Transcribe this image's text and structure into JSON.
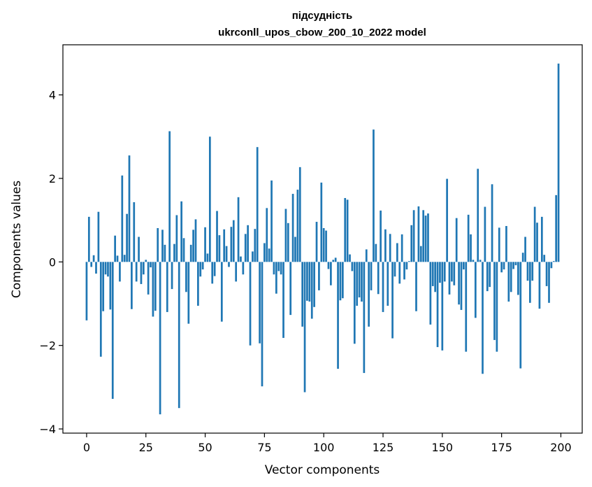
{
  "chart_data": {
    "type": "bar",
    "title": "підсудність",
    "subtitle": "ukrconll_upos_cbow_200_10_2022 model",
    "xlabel": "Vector components",
    "ylabel": "Components values",
    "xlim": [
      -10,
      209
    ],
    "ylim": [
      -4.1,
      5.2
    ],
    "xticks": [
      0,
      25,
      50,
      75,
      100,
      125,
      150,
      175,
      200
    ],
    "yticks": [
      -4,
      -2,
      0,
      2,
      4
    ],
    "ytick_labels": [
      "−4",
      "−2",
      "0",
      "2",
      "4"
    ],
    "bar_color": "#1f77b4",
    "grid": false,
    "legend": "none",
    "values": [
      -1.4,
      1.08,
      -0.12,
      0.16,
      -0.28,
      1.2,
      -2.27,
      -1.18,
      -0.3,
      -0.35,
      -1.14,
      -3.28,
      0.63,
      0.15,
      -0.47,
      2.07,
      0.17,
      1.15,
      2.55,
      -1.13,
      1.43,
      -0.47,
      0.6,
      -0.53,
      -0.3,
      0.05,
      -0.78,
      -0.13,
      -1.31,
      -1.17,
      0.81,
      -3.65,
      0.77,
      0.41,
      -1.2,
      3.13,
      -0.65,
      0.43,
      1.12,
      -3.5,
      1.45,
      0.57,
      -0.72,
      -1.48,
      0.41,
      0.77,
      1.02,
      -1.05,
      -0.35,
      -0.18,
      0.83,
      0.2,
      3.0,
      -0.52,
      -0.34,
      1.22,
      0.64,
      -1.43,
      0.78,
      0.38,
      -0.12,
      0.84,
      1.0,
      -0.47,
      1.55,
      0.13,
      -0.3,
      0.67,
      0.88,
      -2.0,
      0.25,
      0.79,
      2.75,
      -1.95,
      -2.98,
      0.45,
      1.29,
      0.32,
      1.95,
      -0.3,
      -0.76,
      -0.22,
      -0.3,
      -1.82,
      1.27,
      0.93,
      -1.27,
      1.63,
      0.6,
      1.73,
      2.27,
      -1.55,
      -3.12,
      -0.93,
      -0.95,
      -1.36,
      -1.08,
      0.96,
      -0.68,
      1.9,
      0.81,
      0.75,
      -0.17,
      -0.56,
      0.05,
      0.1,
      -2.56,
      -0.92,
      -0.87,
      1.53,
      1.49,
      0.18,
      -0.22,
      -1.96,
      -1.05,
      -0.85,
      -0.95,
      -2.66,
      0.3,
      -1.55,
      -0.68,
      3.17,
      0.43,
      -0.77,
      1.23,
      -1.2,
      0.78,
      -1.05,
      0.67,
      -1.83,
      -0.35,
      0.45,
      -0.52,
      0.66,
      -0.42,
      -0.18,
      0.02,
      0.88,
      1.24,
      -1.18,
      1.33,
      0.38,
      1.24,
      1.11,
      1.16,
      -1.5,
      -0.58,
      -0.72,
      -2.04,
      -0.5,
      -2.12,
      -0.47,
      1.99,
      -0.78,
      -0.47,
      -0.56,
      1.05,
      -1.02,
      -1.15,
      -0.18,
      -2.15,
      1.13,
      0.66,
      0.05,
      -1.34,
      2.23,
      0.05,
      -2.68,
      1.32,
      -0.7,
      -0.6,
      1.86,
      -1.87,
      -2.15,
      0.82,
      -0.25,
      -0.18,
      0.86,
      -0.95,
      -0.72,
      -0.17,
      -0.08,
      -0.79,
      -2.55,
      0.22,
      0.6,
      -0.45,
      -0.98,
      -0.45,
      1.32,
      0.94,
      -1.12,
      1.08,
      0.17,
      -0.58,
      -0.98,
      -0.15,
      0.02,
      1.6,
      4.75
    ]
  }
}
